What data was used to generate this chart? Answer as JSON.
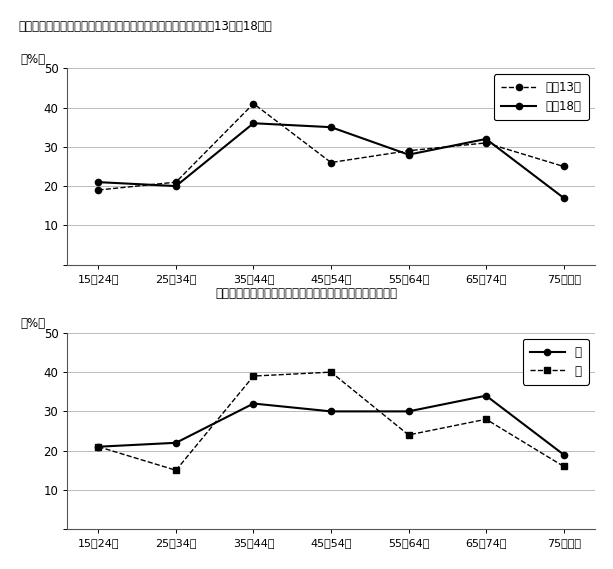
{
  "title1": "図５－１　年齢階級別「ボランティア活動」の行動者率（平成13年，18年）",
  "title2": "図５－２　男女，年齢別「ボランティア活動」の行動者率",
  "categories": [
    "15－24歳",
    "25－34歳",
    "35－44歳",
    "45－54歳",
    "55－64歳",
    "65－74歳",
    "75歳以上"
  ],
  "chart1": {
    "series1_label": "平成13年",
    "series2_label": "平成18年",
    "y13": [
      19,
      21,
      41,
      26,
      29,
      31,
      25
    ],
    "y18": [
      21,
      20,
      36,
      35,
      28,
      32,
      17
    ]
  },
  "chart2": {
    "series1_label": "男",
    "series2_label": "女",
    "y_male": [
      21,
      22,
      32,
      30,
      30,
      34,
      19
    ],
    "y_female": [
      21,
      15,
      39,
      40,
      24,
      28,
      16
    ]
  },
  "ylim": [
    0,
    50
  ],
  "yticks": [
    0,
    10,
    20,
    30,
    40,
    50
  ],
  "ylabel": "（%）",
  "grid_color": "#bbbbbb"
}
